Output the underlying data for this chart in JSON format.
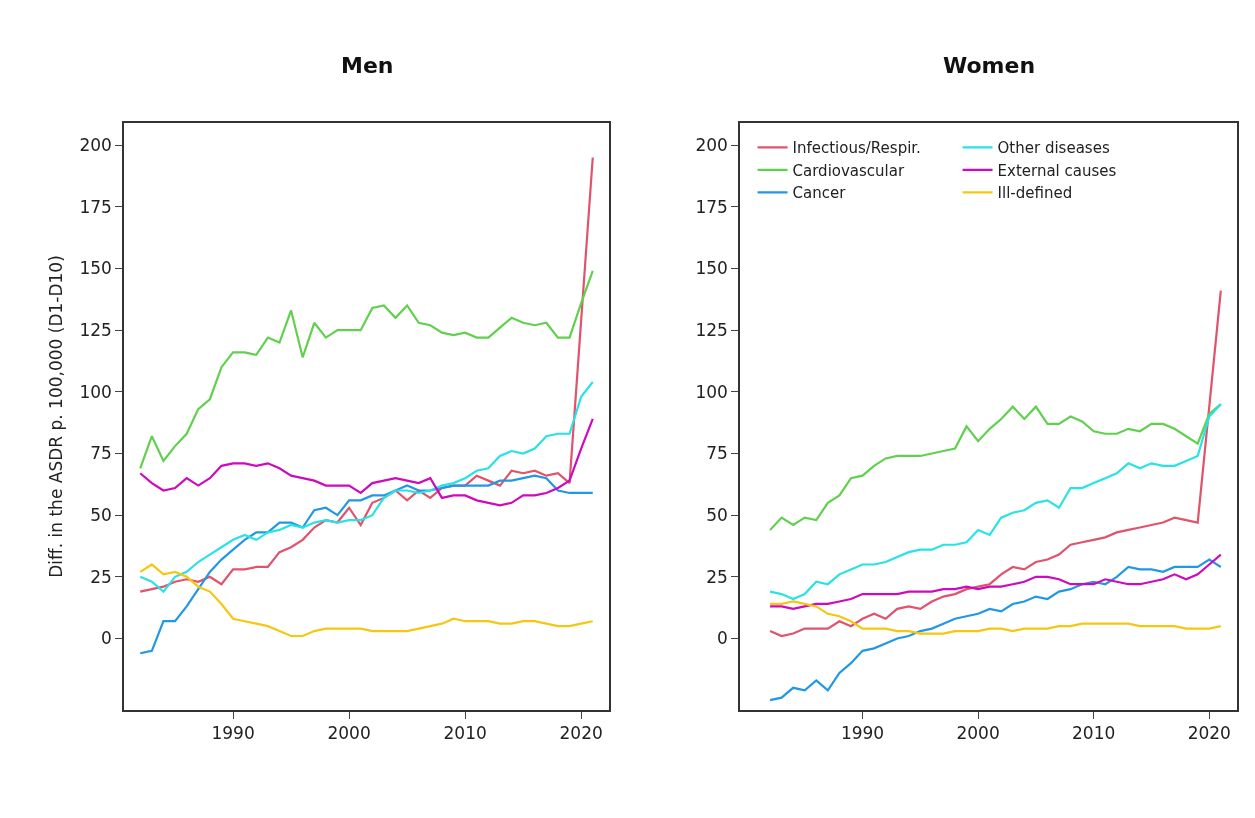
{
  "chart_data": [
    {
      "type": "line",
      "title": "Men",
      "ylabel": "Diff. in the ASDR p. 100,000 (D1-D10)",
      "x": [
        1982,
        1983,
        1984,
        1985,
        1986,
        1987,
        1988,
        1989,
        1990,
        1991,
        1992,
        1993,
        1994,
        1995,
        1996,
        1997,
        1998,
        1999,
        2000,
        2001,
        2002,
        2003,
        2004,
        2005,
        2006,
        2007,
        2008,
        2009,
        2010,
        2011,
        2012,
        2013,
        2014,
        2015,
        2016,
        2017,
        2018,
        2019,
        2020,
        2021
      ],
      "xlim": [
        1980.6,
        2022.4
      ],
      "xticks": [
        1990,
        2000,
        2010,
        2020
      ],
      "ylim": [
        -29,
        209
      ],
      "yticks": [
        0,
        25,
        50,
        75,
        100,
        125,
        150,
        175,
        200
      ],
      "grid": false,
      "legend": false,
      "line_style": "solid",
      "marker": "none",
      "series": [
        {
          "color": "#df536b",
          "values": [
            19,
            20,
            21,
            23,
            24,
            23,
            25,
            22,
            28,
            28,
            29,
            29,
            35,
            37,
            40,
            45,
            48,
            47,
            53,
            46,
            55,
            57,
            60,
            56,
            60,
            57,
            61,
            62,
            62,
            66,
            64,
            62,
            68,
            67,
            68,
            66,
            67,
            63,
            129,
            195
          ]
        },
        {
          "color": "#61d04f",
          "values": [
            69,
            82,
            72,
            78,
            83,
            93,
            97,
            110,
            116,
            116,
            115,
            122,
            120,
            133,
            114,
            128,
            122,
            125,
            125,
            125,
            134,
            135,
            130,
            135,
            128,
            127,
            124,
            123,
            124,
            122,
            122,
            126,
            130,
            128,
            127,
            128,
            122,
            122,
            136,
            149
          ]
        },
        {
          "color": "#2297e6",
          "values": [
            -6,
            -5,
            7,
            7,
            13,
            20,
            27,
            32,
            36,
            40,
            43,
            43,
            47,
            47,
            45,
            52,
            53,
            50,
            56,
            56,
            58,
            58,
            60,
            62,
            60,
            60,
            61,
            62,
            62,
            62,
            62,
            64,
            64,
            65,
            66,
            65,
            60,
            59,
            59,
            59
          ]
        },
        {
          "color": "#28e2e5",
          "values": [
            25,
            23,
            19,
            25,
            27,
            31,
            34,
            37,
            40,
            42,
            40,
            43,
            44,
            46,
            45,
            47,
            48,
            47,
            48,
            48,
            50,
            57,
            60,
            60,
            59,
            60,
            62,
            63,
            65,
            68,
            69,
            74,
            76,
            75,
            77,
            82,
            83,
            83,
            98,
            104
          ]
        },
        {
          "color": "#cd0bbc",
          "values": [
            67,
            63,
            60,
            61,
            65,
            62,
            65,
            70,
            71,
            71,
            70,
            71,
            69,
            66,
            65,
            64,
            62,
            62,
            62,
            59,
            63,
            64,
            65,
            64,
            63,
            65,
            57,
            58,
            58,
            56,
            55,
            54,
            55,
            58,
            58,
            59,
            61,
            64,
            77,
            89
          ]
        },
        {
          "color": "#f5c710",
          "values": [
            27,
            30,
            26,
            27,
            25,
            21,
            19,
            14,
            8,
            7,
            6,
            5,
            3,
            1,
            1,
            3,
            4,
            4,
            4,
            4,
            3,
            3,
            3,
            3,
            4,
            5,
            6,
            8,
            7,
            7,
            7,
            6,
            6,
            7,
            7,
            6,
            5,
            5,
            6,
            7
          ]
        }
      ]
    },
    {
      "type": "line",
      "title": "Women",
      "x": [
        1982,
        1983,
        1984,
        1985,
        1986,
        1987,
        1988,
        1989,
        1990,
        1991,
        1992,
        1993,
        1994,
        1995,
        1996,
        1997,
        1998,
        1999,
        2000,
        2001,
        2002,
        2003,
        2004,
        2005,
        2006,
        2007,
        2008,
        2009,
        2010,
        2011,
        2012,
        2013,
        2014,
        2015,
        2016,
        2017,
        2018,
        2019,
        2020,
        2021
      ],
      "xlim": [
        1979.4,
        2022.4
      ],
      "xticks": [
        1990,
        2000,
        2010,
        2020
      ],
      "ylim": [
        -29,
        209
      ],
      "yticks": [
        0,
        25,
        50,
        75,
        100,
        125,
        150,
        175,
        200
      ],
      "grid": false,
      "legend": "top left",
      "line_style": "solid",
      "marker": "none",
      "series": [
        {
          "name": "Infectious/Respir.",
          "color": "#df536b",
          "values": [
            3,
            1,
            2,
            4,
            4,
            4,
            7,
            5,
            8,
            10,
            8,
            12,
            13,
            12,
            15,
            17,
            18,
            20,
            21,
            22,
            26,
            29,
            28,
            31,
            32,
            34,
            38,
            39,
            40,
            41,
            43,
            44,
            45,
            46,
            47,
            49,
            48,
            47,
            94,
            141
          ]
        },
        {
          "name": "Cardiovascular",
          "color": "#61d04f",
          "values": [
            44,
            49,
            46,
            49,
            48,
            55,
            58,
            65,
            66,
            70,
            73,
            74,
            74,
            74,
            75,
            76,
            77,
            86,
            80,
            85,
            89,
            94,
            89,
            94,
            87,
            87,
            90,
            88,
            84,
            83,
            83,
            85,
            84,
            87,
            87,
            85,
            82,
            79,
            91,
            95
          ]
        },
        {
          "name": "Cancer",
          "color": "#2297e6",
          "values": [
            -25,
            -24,
            -20,
            -21,
            -17,
            -21,
            -14,
            -10,
            -5,
            -4,
            -2,
            0,
            1,
            3,
            4,
            6,
            8,
            9,
            10,
            12,
            11,
            14,
            15,
            17,
            16,
            19,
            20,
            22,
            23,
            22,
            25,
            29,
            28,
            28,
            27,
            29,
            29,
            29,
            32,
            29
          ]
        },
        {
          "name": "Other diseases",
          "color": "#28e2e5",
          "values": [
            19,
            18,
            16,
            18,
            23,
            22,
            26,
            28,
            30,
            30,
            31,
            33,
            35,
            36,
            36,
            38,
            38,
            39,
            44,
            42,
            49,
            51,
            52,
            55,
            56,
            53,
            61,
            61,
            63,
            65,
            67,
            71,
            69,
            71,
            70,
            70,
            72,
            74,
            90,
            95
          ]
        },
        {
          "name": "External causes",
          "color": "#cd0bbc",
          "values": [
            13,
            13,
            12,
            13,
            14,
            14,
            15,
            16,
            18,
            18,
            18,
            18,
            19,
            19,
            19,
            20,
            20,
            21,
            20,
            21,
            21,
            22,
            23,
            25,
            25,
            24,
            22,
            22,
            22,
            24,
            23,
            22,
            22,
            23,
            24,
            26,
            24,
            26,
            30,
            34
          ]
        },
        {
          "name": "Ill-defined",
          "color": "#f5c710",
          "values": [
            14,
            14,
            15,
            14,
            13,
            10,
            9,
            7,
            4,
            4,
            4,
            3,
            3,
            2,
            2,
            2,
            3,
            3,
            3,
            4,
            4,
            3,
            4,
            4,
            4,
            5,
            5,
            6,
            6,
            6,
            6,
            6,
            5,
            5,
            5,
            5,
            4,
            4,
            4,
            5
          ]
        }
      ]
    }
  ]
}
